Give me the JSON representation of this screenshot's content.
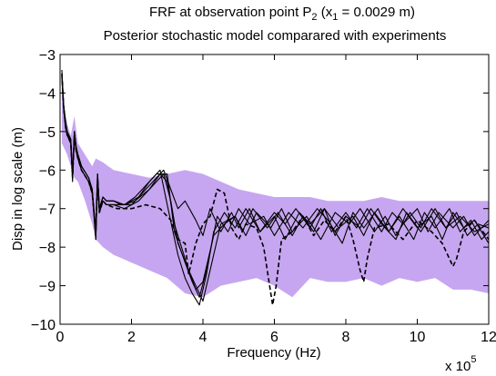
{
  "chart_data": {
    "type": "line",
    "title_main": "FRF at observation point P",
    "title_sub_p": "2",
    "title_mid": " (x",
    "title_sub_x": "1",
    "title_end": " = 0.0029 m)",
    "subtitle": "Posterior stochastic model comparared with experiments",
    "xlabel": "Frequency (Hz)",
    "ylabel": "Disp in log scale (m)",
    "x_multiplier_base": "x 10",
    "x_multiplier_exp": "5",
    "x_ticks": [
      "0",
      "2",
      "4",
      "6",
      "8",
      "10",
      "12"
    ],
    "y_ticks": [
      "−3",
      "−4",
      "−5",
      "−6",
      "−7",
      "−8",
      "−9",
      "−10"
    ],
    "xlim": [
      0,
      12
    ],
    "ylim": [
      -10,
      -3
    ],
    "grid": false,
    "colors": {
      "band": "#c6a6f0",
      "lines": "#000000"
    },
    "confidence_band": {
      "x": [
        0.05,
        0.1,
        0.2,
        0.3,
        0.4,
        0.5,
        0.7,
        0.9,
        1.0,
        1.2,
        1.5,
        2.0,
        2.5,
        3.0,
        3.5,
        4.0,
        4.5,
        5.0,
        5.5,
        6.0,
        6.5,
        7.0,
        7.5,
        8.0,
        8.5,
        9.0,
        9.5,
        10.0,
        10.5,
        11.0,
        11.5,
        12.0
      ],
      "upper": [
        -3.6,
        -4.3,
        -4.8,
        -5.1,
        -4.6,
        -5.3,
        -5.6,
        -5.9,
        -5.7,
        -5.8,
        -6.0,
        -6.1,
        -6.2,
        -6.1,
        -6.0,
        -6.1,
        -6.3,
        -6.5,
        -6.6,
        -6.7,
        -6.7,
        -6.7,
        -6.8,
        -6.8,
        -6.8,
        -6.7,
        -6.8,
        -6.8,
        -6.8,
        -6.8,
        -6.8,
        -6.8
      ],
      "lower": [
        -5.3,
        -5.4,
        -5.6,
        -5.9,
        -6.2,
        -6.3,
        -6.8,
        -7.4,
        -7.8,
        -8.0,
        -8.2,
        -8.4,
        -8.6,
        -8.8,
        -9.2,
        -9.3,
        -9.0,
        -8.9,
        -8.8,
        -9.0,
        -9.3,
        -8.8,
        -8.9,
        -8.9,
        -8.8,
        -9.0,
        -8.8,
        -8.9,
        -8.8,
        -9.1,
        -9.1,
        -9.2
      ]
    },
    "series": [
      {
        "style": "solid",
        "x": [
          0.05,
          0.1,
          0.15,
          0.2,
          0.3,
          0.35,
          0.4,
          0.45,
          0.5,
          0.6,
          0.8,
          0.9,
          1.0,
          1.05,
          1.1,
          1.2,
          1.3,
          1.5,
          1.7,
          2.0,
          2.3,
          2.6,
          2.9,
          3.1,
          3.3,
          3.5,
          3.8,
          4.0,
          4.2,
          4.5,
          4.8,
          5.0,
          5.3,
          5.6,
          6.0,
          6.3,
          6.6,
          7.0,
          7.3,
          7.6,
          8.0,
          8.3,
          8.6,
          9.0,
          9.3,
          9.6,
          10.0,
          10.3,
          10.6,
          11.0,
          11.3,
          11.6,
          12.0
        ],
        "y": [
          -3.4,
          -4.3,
          -4.8,
          -5.0,
          -5.2,
          -6.2,
          -5.0,
          -5.4,
          -5.6,
          -5.9,
          -6.2,
          -6.5,
          -7.6,
          -6.1,
          -7.0,
          -6.7,
          -6.8,
          -6.8,
          -6.9,
          -6.9,
          -6.6,
          -6.3,
          -6.0,
          -6.5,
          -7.0,
          -6.8,
          -7.3,
          -7.7,
          -7.0,
          -7.6,
          -7.1,
          -7.5,
          -7.0,
          -7.6,
          -7.1,
          -7.4,
          -7.0,
          -7.5,
          -7.0,
          -7.6,
          -7.1,
          -7.5,
          -7.0,
          -7.6,
          -7.1,
          -7.4,
          -7.0,
          -7.6,
          -7.1,
          -7.5,
          -7.2,
          -7.7,
          -7.3
        ]
      },
      {
        "style": "solid",
        "x": [
          0.05,
          0.1,
          0.15,
          0.2,
          0.3,
          0.35,
          0.4,
          0.45,
          0.5,
          0.6,
          0.8,
          0.9,
          1.0,
          1.05,
          1.1,
          1.2,
          1.3,
          1.5,
          1.8,
          2.1,
          2.4,
          2.7,
          3.0,
          3.2,
          3.5,
          3.7,
          3.9,
          4.1,
          4.4,
          4.7,
          5.0,
          5.3,
          5.7,
          6.0,
          6.4,
          6.8,
          7.2,
          7.5,
          7.9,
          8.2,
          8.5,
          8.9,
          9.2,
          9.5,
          9.9,
          10.2,
          10.5,
          10.9,
          11.2,
          11.5,
          11.8,
          12.0
        ],
        "y": [
          -3.5,
          -4.4,
          -4.8,
          -5.1,
          -5.2,
          -6.1,
          -5.1,
          -5.5,
          -5.7,
          -6.0,
          -6.3,
          -6.6,
          -7.8,
          -6.2,
          -7.1,
          -6.8,
          -6.9,
          -6.9,
          -6.9,
          -6.7,
          -6.4,
          -6.1,
          -6.1,
          -7.6,
          -8.4,
          -8.9,
          -9.3,
          -8.6,
          -7.2,
          -7.6,
          -7.0,
          -7.4,
          -7.2,
          -7.7,
          -7.1,
          -7.5,
          -7.0,
          -7.3,
          -7.9,
          -7.1,
          -7.5,
          -7.0,
          -7.6,
          -7.2,
          -7.8,
          -7.1,
          -7.5,
          -7.0,
          -7.6,
          -7.3,
          -7.8,
          -7.6
        ]
      },
      {
        "style": "solid",
        "x": [
          0.05,
          0.1,
          0.15,
          0.2,
          0.3,
          0.35,
          0.4,
          0.45,
          0.5,
          0.6,
          0.8,
          0.9,
          1.0,
          1.05,
          1.1,
          1.2,
          1.3,
          1.5,
          1.8,
          2.1,
          2.5,
          2.8,
          3.0,
          3.2,
          3.4,
          3.6,
          3.8,
          4.0,
          4.2,
          4.5,
          4.9,
          5.2,
          5.5,
          5.9,
          6.2,
          6.5,
          6.9,
          7.3,
          7.7,
          8.1,
          8.4,
          8.8,
          9.1,
          9.4,
          9.8,
          10.1,
          10.4,
          10.8,
          11.1,
          11.4,
          11.7,
          12.0
        ],
        "y": [
          -3.5,
          -4.3,
          -4.7,
          -5.0,
          -5.3,
          -6.3,
          -5.0,
          -5.4,
          -5.6,
          -5.9,
          -6.2,
          -6.5,
          -7.7,
          -6.1,
          -7.0,
          -6.7,
          -6.8,
          -6.8,
          -6.9,
          -6.8,
          -6.5,
          -6.1,
          -6.3,
          -7.4,
          -8.0,
          -8.6,
          -9.0,
          -9.4,
          -8.6,
          -7.4,
          -7.2,
          -7.7,
          -7.1,
          -7.5,
          -7.0,
          -7.6,
          -7.2,
          -7.8,
          -7.1,
          -7.4,
          -7.0,
          -7.6,
          -7.2,
          -7.7,
          -7.1,
          -7.5,
          -7.0,
          -7.5,
          -7.1,
          -7.7,
          -7.4,
          -7.5
        ]
      },
      {
        "style": "solid",
        "x": [
          0.05,
          0.1,
          0.15,
          0.2,
          0.3,
          0.35,
          0.4,
          0.45,
          0.5,
          0.6,
          0.8,
          0.9,
          1.0,
          1.05,
          1.1,
          1.2,
          1.3,
          1.5,
          1.8,
          2.2,
          2.6,
          2.9,
          3.1,
          3.3,
          3.6,
          3.8,
          4.0,
          4.3,
          4.6,
          4.9,
          5.1,
          5.4,
          5.8,
          6.1,
          6.5,
          6.8,
          7.1,
          7.4,
          7.8,
          8.2,
          8.5,
          8.8,
          9.2,
          9.6,
          10.0,
          10.4,
          10.7,
          11.0,
          11.3,
          11.6,
          12.0
        ],
        "y": [
          -3.6,
          -4.4,
          -4.9,
          -5.1,
          -5.3,
          -6.2,
          -5.1,
          -5.5,
          -5.7,
          -6.0,
          -6.3,
          -6.6,
          -7.7,
          -6.2,
          -7.1,
          -6.8,
          -6.9,
          -6.9,
          -7.0,
          -6.8,
          -6.4,
          -6.1,
          -6.8,
          -7.9,
          -8.6,
          -9.1,
          -8.9,
          -7.7,
          -7.4,
          -7.2,
          -7.6,
          -7.0,
          -7.5,
          -7.1,
          -7.7,
          -7.2,
          -7.6,
          -7.0,
          -7.5,
          -7.2,
          -7.7,
          -7.1,
          -7.6,
          -7.0,
          -7.5,
          -7.2,
          -7.8,
          -7.1,
          -7.5,
          -7.3,
          -7.9
        ]
      },
      {
        "style": "solid",
        "x": [
          0.05,
          0.1,
          0.15,
          0.2,
          0.3,
          0.35,
          0.4,
          0.45,
          0.5,
          0.6,
          0.8,
          0.9,
          1.0,
          1.05,
          1.1,
          1.2,
          1.3,
          1.5,
          1.8,
          2.2,
          2.5,
          2.8,
          3.0,
          3.3,
          3.5,
          3.7,
          3.9,
          4.1,
          4.3,
          4.6,
          4.9,
          5.2,
          5.6,
          6.0,
          6.3,
          6.7,
          7.0,
          7.4,
          7.7,
          8.0,
          8.4,
          8.7,
          9.0,
          9.4,
          9.7,
          10.1,
          10.5,
          10.8,
          11.2,
          11.6,
          12.0
        ],
        "y": [
          -3.5,
          -4.3,
          -4.8,
          -5.0,
          -5.2,
          -6.1,
          -5.0,
          -5.4,
          -5.6,
          -5.9,
          -6.2,
          -6.5,
          -7.8,
          -6.1,
          -7.0,
          -6.7,
          -6.8,
          -6.8,
          -6.9,
          -6.7,
          -6.3,
          -6.0,
          -6.9,
          -8.2,
          -8.8,
          -9.2,
          -9.5,
          -8.7,
          -7.6,
          -7.1,
          -7.5,
          -7.0,
          -7.6,
          -7.2,
          -7.8,
          -7.1,
          -7.4,
          -7.0,
          -7.7,
          -7.2,
          -7.5,
          -7.0,
          -7.4,
          -7.8,
          -7.1,
          -7.6,
          -7.0,
          -7.5,
          -7.2,
          -7.6,
          -7.4
        ]
      },
      {
        "style": "dashed",
        "x": [
          0.05,
          0.1,
          0.15,
          0.2,
          0.3,
          0.35,
          0.4,
          0.45,
          0.5,
          0.6,
          0.8,
          0.9,
          1.0,
          1.05,
          1.1,
          1.2,
          1.3,
          1.6,
          2.0,
          2.4,
          2.8,
          3.1,
          3.3,
          3.5,
          3.6,
          3.8,
          4.0,
          4.2,
          4.4,
          4.6,
          4.8,
          5.0,
          5.2,
          5.5,
          5.7,
          5.85,
          5.95,
          6.05,
          6.2,
          6.5,
          6.8,
          7.1,
          7.4,
          7.7,
          8.0,
          8.2,
          8.4,
          8.5,
          8.6,
          8.8,
          9.2,
          9.6,
          10.0,
          10.4,
          10.7,
          10.9,
          11.0,
          11.1,
          11.3,
          11.6,
          12.0
        ],
        "y": [
          -3.5,
          -4.4,
          -4.8,
          -5.1,
          -5.3,
          -6.2,
          -5.1,
          -5.5,
          -5.7,
          -6.0,
          -6.3,
          -6.6,
          -7.6,
          -6.2,
          -7.1,
          -6.8,
          -6.9,
          -7.0,
          -7.0,
          -6.9,
          -7.0,
          -7.3,
          -7.8,
          -7.9,
          -8.7,
          -7.9,
          -7.4,
          -7.2,
          -6.5,
          -6.6,
          -7.5,
          -7.8,
          -7.4,
          -7.5,
          -8.0,
          -8.9,
          -9.5,
          -9.0,
          -7.8,
          -7.6,
          -7.2,
          -7.7,
          -7.3,
          -7.6,
          -7.2,
          -7.8,
          -8.6,
          -8.9,
          -8.3,
          -7.5,
          -7.4,
          -7.8,
          -7.3,
          -7.6,
          -7.9,
          -8.3,
          -8.5,
          -8.3,
          -7.6,
          -7.3,
          -7.8
        ]
      }
    ]
  }
}
